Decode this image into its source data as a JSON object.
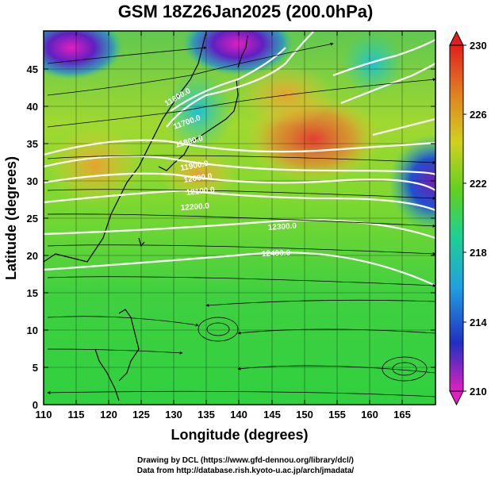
{
  "title": "GSM 18Z26Jan2025 (200.0hPa)",
  "xlabel": "Longitude (degrees)",
  "ylabel": "Latitude  (degrees)",
  "xticks": [
    "110",
    "115",
    "120",
    "125",
    "130",
    "135",
    "140",
    "145",
    "150",
    "155",
    "160",
    "165"
  ],
  "yticks": [
    "0",
    "5",
    "10",
    "15",
    "20",
    "25",
    "30",
    "35",
    "40",
    "45"
  ],
  "colorbar_ticks": [
    "230",
    "226",
    "222",
    "218",
    "214",
    "210"
  ],
  "contour_labels": [
    "11600.0",
    "11700.0",
    "11800.0",
    "11900.0",
    "12000.0",
    "12100.0",
    "12200.0",
    "12300.0",
    "12400.0"
  ],
  "credits": [
    "Drawing by DCL (https://www.gfd-dennou.org/library/dcl/)",
    "Data from http://database.rish.kyoto-u.ac.jp/arch/jmadata/"
  ],
  "chart_data": {
    "type": "heatmap",
    "title": "GSM 18Z26Jan2025 (200.0hPa)",
    "xlabel": "Longitude (degrees)",
    "ylabel": "Latitude (degrees)",
    "xlim": [
      110,
      170
    ],
    "ylim": [
      0,
      50
    ],
    "colorbar_range": [
      210,
      230
    ],
    "colorbar_ticks": [
      210,
      214,
      218,
      222,
      226,
      230
    ],
    "colorbar_colors": [
      "#e020c0",
      "#2030c0",
      "#20a0e0",
      "#20e080",
      "#80e020",
      "#e0d020",
      "#e06020",
      "#e02020"
    ],
    "contour_levels": [
      11600,
      11700,
      11800,
      11900,
      12000,
      12100,
      12200,
      12300,
      12400
    ],
    "overlays": [
      "temperature shading (K)",
      "geopotential height contours (m)",
      "wind streamlines"
    ]
  }
}
